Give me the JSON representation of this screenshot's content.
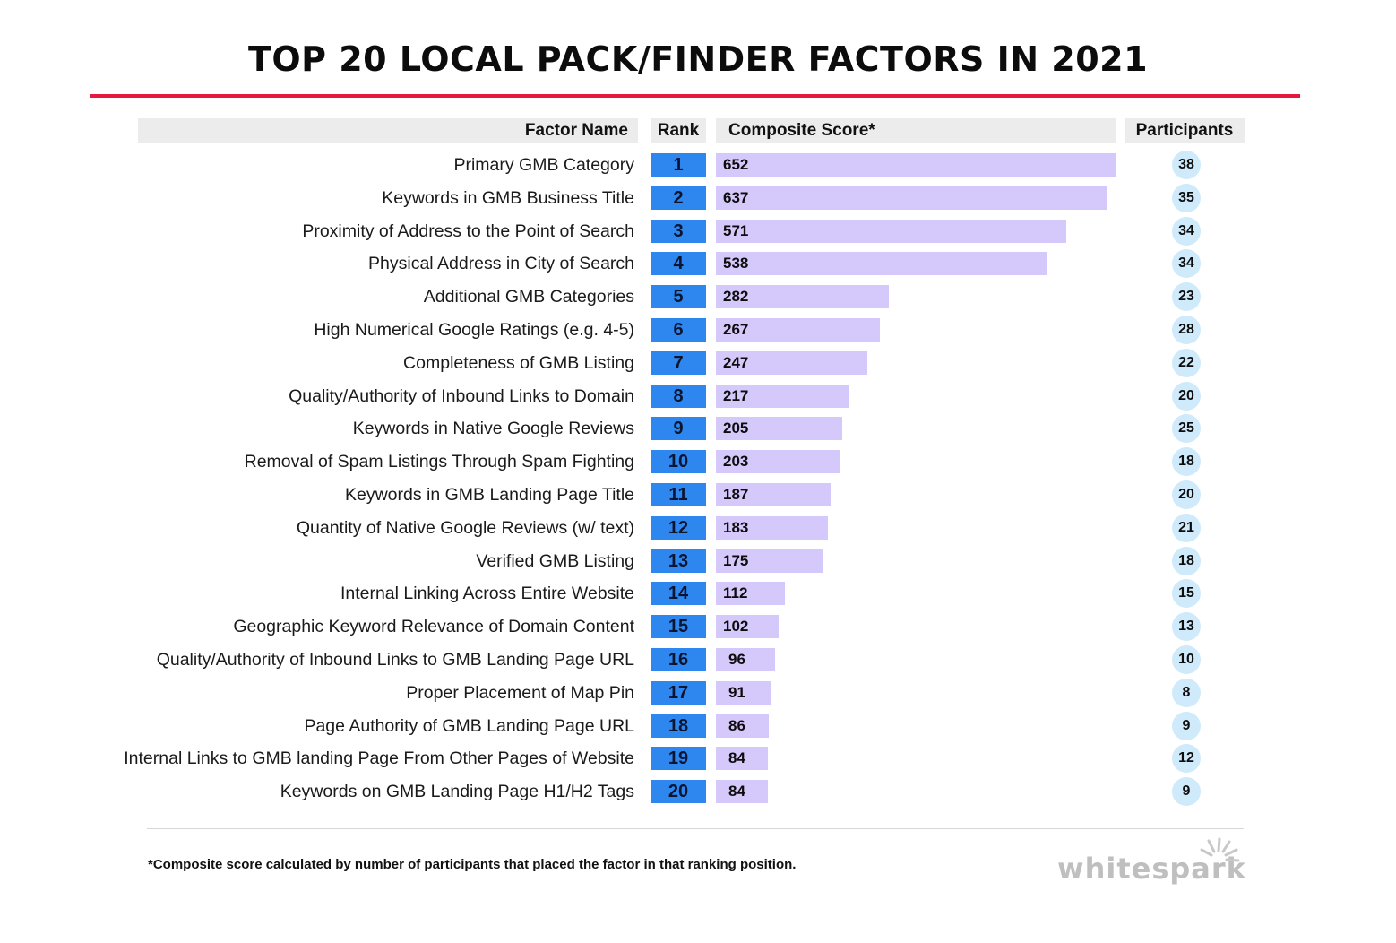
{
  "chart_data": {
    "type": "bar",
    "title": "TOP 20 LOCAL PACK/FINDER FACTORS IN 2021",
    "columns": {
      "factor": "Factor Name",
      "rank": "Rank",
      "score": "Composite Score*",
      "participants": "Participants"
    },
    "xlim": [
      0,
      652
    ],
    "rows": [
      {
        "factor": "Primary GMB Category",
        "rank": 1,
        "score": 652,
        "participants": 38
      },
      {
        "factor": "Keywords in GMB Business Title",
        "rank": 2,
        "score": 637,
        "participants": 35
      },
      {
        "factor": "Proximity of Address to the Point of Search",
        "rank": 3,
        "score": 571,
        "participants": 34
      },
      {
        "factor": "Physical Address in City of Search",
        "rank": 4,
        "score": 538,
        "participants": 34
      },
      {
        "factor": "Additional GMB Categories",
        "rank": 5,
        "score": 282,
        "participants": 23
      },
      {
        "factor": "High Numerical Google Ratings (e.g. 4-5)",
        "rank": 6,
        "score": 267,
        "participants": 28
      },
      {
        "factor": "Completeness of GMB Listing",
        "rank": 7,
        "score": 247,
        "participants": 22
      },
      {
        "factor": "Quality/Authority of Inbound Links to Domain",
        "rank": 8,
        "score": 217,
        "participants": 20
      },
      {
        "factor": "Keywords in Native Google Reviews",
        "rank": 9,
        "score": 205,
        "participants": 25
      },
      {
        "factor": "Removal of Spam Listings Through Spam Fighting",
        "rank": 10,
        "score": 203,
        "participants": 18
      },
      {
        "factor": "Keywords in GMB Landing Page Title",
        "rank": 11,
        "score": 187,
        "participants": 20
      },
      {
        "factor": "Quantity of Native Google Reviews (w/ text)",
        "rank": 12,
        "score": 183,
        "participants": 21
      },
      {
        "factor": "Verified GMB Listing",
        "rank": 13,
        "score": 175,
        "participants": 18
      },
      {
        "factor": "Internal Linking Across Entire Website",
        "rank": 14,
        "score": 112,
        "participants": 15
      },
      {
        "factor": "Geographic Keyword Relevance of Domain Content",
        "rank": 15,
        "score": 102,
        "participants": 13
      },
      {
        "factor": "Quality/Authority of Inbound Links to GMB Landing Page URL",
        "rank": 16,
        "score": 96,
        "participants": 10
      },
      {
        "factor": "Proper Placement of Map Pin",
        "rank": 17,
        "score": 91,
        "participants": 8
      },
      {
        "factor": "Page Authority of GMB Landing Page URL",
        "rank": 18,
        "score": 86,
        "participants": 9
      },
      {
        "factor": "Internal Links to GMB landing Page From Other Pages of Website",
        "rank": 19,
        "score": 84,
        "participants": 12
      },
      {
        "factor": "Keywords on GMB Landing Page H1/H2 Tags",
        "rank": 20,
        "score": 84,
        "participants": 9
      }
    ],
    "footnote": "*Composite score calculated by number of participants that placed the factor in that ranking position.",
    "grid": false,
    "legend": "none"
  },
  "brand": {
    "logo_text": "whitespark"
  },
  "colors": {
    "title_rule": "#e8173f",
    "rank_fill": "#2e86ef",
    "score_bar": "#d5c8fb",
    "participant_circle": "#cfeafb",
    "header_band": "#ececec"
  }
}
